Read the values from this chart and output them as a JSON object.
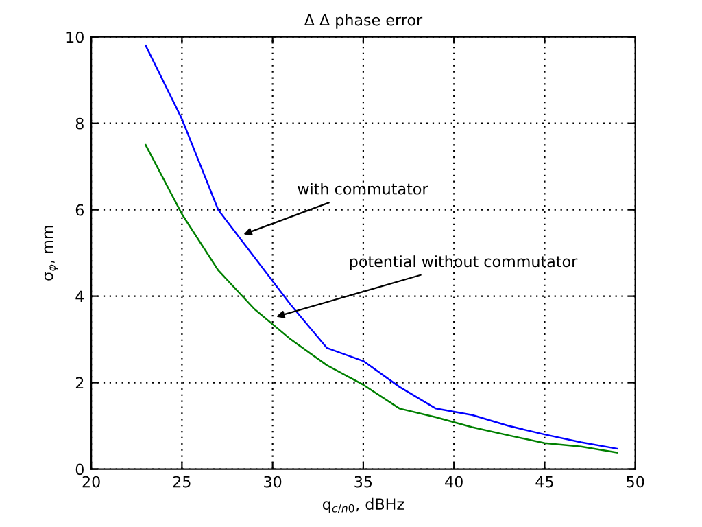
{
  "chart_data": {
    "type": "line",
    "title": "Δ Δ phase error",
    "xlabel": "q$_{c/n0}$, dBHz",
    "ylabel": "σ$_{φ}$, mm",
    "x": [
      23,
      25,
      27,
      29,
      31,
      33,
      35,
      37,
      39,
      41,
      43,
      45,
      47,
      49
    ],
    "series": [
      {
        "color": "#0000ff",
        "values": [
          9.8,
          8.1,
          6.0,
          4.9,
          3.8,
          2.8,
          2.5,
          1.9,
          1.4,
          1.25,
          1.0,
          0.8,
          0.62,
          0.47
        ]
      },
      {
        "color": "#008000",
        "values": [
          7.5,
          5.9,
          4.6,
          3.7,
          3.0,
          2.4,
          1.95,
          1.4,
          1.2,
          0.97,
          0.78,
          0.6,
          0.52,
          0.38
        ]
      }
    ],
    "annotations": [
      {
        "text": "with commutator",
        "x": 28.2,
        "y": 5.4
      },
      {
        "text": "potential without commutator",
        "x": 30,
        "y": 3.5
      }
    ],
    "xlim": [
      20,
      50
    ],
    "xticks": [
      20,
      25,
      30,
      35,
      40,
      45,
      50
    ],
    "ylim": [
      0,
      10
    ],
    "yticks": [
      0,
      2,
      4,
      6,
      8,
      10
    ],
    "grid": true,
    "marker": "none",
    "line_style": "solid"
  }
}
